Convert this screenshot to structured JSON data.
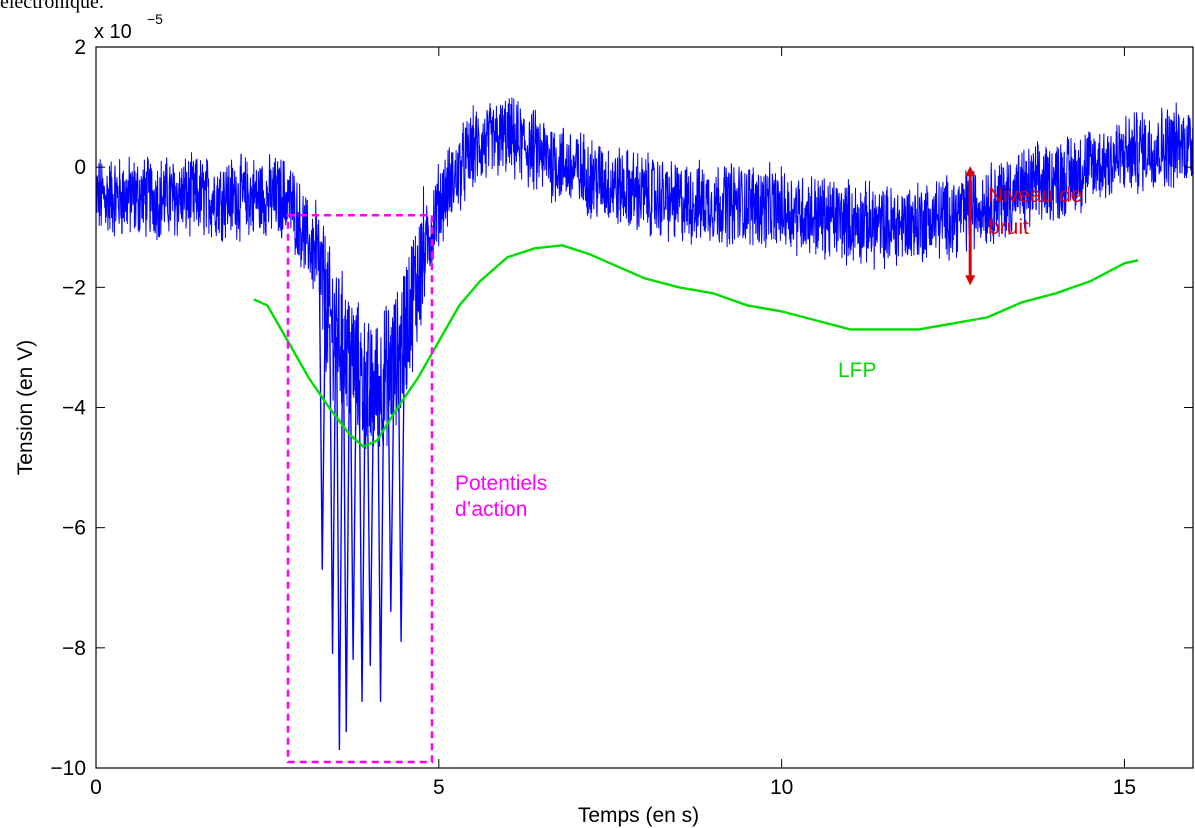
{
  "page": {
    "top_text": "électronique."
  },
  "chart_data": {
    "type": "line",
    "xlabel": "Temps (en s)",
    "ylabel": "Tension (en V)",
    "y_exponent_prefix": "x 10",
    "y_exponent_power": "−5",
    "xlim": [
      0,
      16
    ],
    "ylim": [
      -10,
      2
    ],
    "x_ticks": [
      0,
      5,
      10,
      15
    ],
    "x_tick_labels": [
      "0",
      "5",
      "10",
      "15"
    ],
    "y_ticks": [
      -10,
      -8,
      -6,
      -4,
      -2,
      0,
      2
    ],
    "y_tick_labels": [
      "−10",
      "−8",
      "−6",
      "−4",
      "−2",
      "0",
      "2"
    ],
    "grid": false,
    "series": [
      {
        "name": "",
        "color": "#0000ff",
        "style": "noisy recording",
        "center_x": [
          0,
          1.0,
          2.0,
          2.8,
          3.2,
          3.4,
          4.0,
          4.4,
          4.7,
          5.0,
          5.5,
          6.0,
          6.5,
          7.5,
          8.5,
          9.5,
          10.5,
          11.5,
          12.5,
          13.5,
          14.5,
          15.3,
          16.0
        ],
        "center_y": [
          -0.5,
          -0.5,
          -0.5,
          -0.5,
          -1.5,
          -2.5,
          -3.8,
          -3.2,
          -1.8,
          -0.6,
          0.3,
          0.5,
          0.2,
          -0.3,
          -0.6,
          -0.6,
          -0.8,
          -1.0,
          -0.8,
          -0.4,
          0.0,
          0.3,
          0.4
        ],
        "spikes_x": [
          3.3,
          3.45,
          3.55,
          3.65,
          3.75,
          3.88,
          4.0,
          4.15,
          4.3,
          4.45
        ],
        "spikes_y": [
          -6.7,
          -8.1,
          -9.7,
          -9.4,
          -8.2,
          -8.9,
          -8.3,
          -8.9,
          -7.4,
          -7.9
        ]
      },
      {
        "name": "LFP",
        "color": "#00dd00",
        "x": [
          2.3,
          2.5,
          2.8,
          3.1,
          3.4,
          3.7,
          3.9,
          4.1,
          4.4,
          4.7,
          5.0,
          5.3,
          5.6,
          6.0,
          6.4,
          6.8,
          7.2,
          7.6,
          8.0,
          8.5,
          9.0,
          9.5,
          10.0,
          10.5,
          11.0,
          11.5,
          12.0,
          12.5,
          13.0,
          13.5,
          14.0,
          14.5,
          15.0,
          15.2
        ],
        "y": [
          -2.2,
          -2.3,
          -2.9,
          -3.5,
          -4.0,
          -4.45,
          -4.65,
          -4.55,
          -4.0,
          -3.5,
          -2.9,
          -2.3,
          -1.9,
          -1.5,
          -1.35,
          -1.3,
          -1.45,
          -1.65,
          -1.85,
          -2.0,
          -2.1,
          -2.3,
          -2.4,
          -2.55,
          -2.7,
          -2.7,
          -2.7,
          -2.6,
          -2.5,
          -2.25,
          -2.1,
          -1.9,
          -1.6,
          -1.55
        ]
      }
    ],
    "annotations": {
      "box": {
        "x0": 2.8,
        "x1": 4.9,
        "y0": -9.9,
        "y1": -0.8,
        "color": "#ff00ff",
        "label_lines": [
          "Potentiels",
          "d’action"
        ]
      },
      "arrow": {
        "x": 12.75,
        "y0": 0.0,
        "y1": -1.95,
        "color": "#dd0000",
        "label_lines": [
          "Niveau de",
          "bruit"
        ]
      },
      "lfp_label": {
        "text": "LFP",
        "color": "#00dd00"
      }
    }
  }
}
